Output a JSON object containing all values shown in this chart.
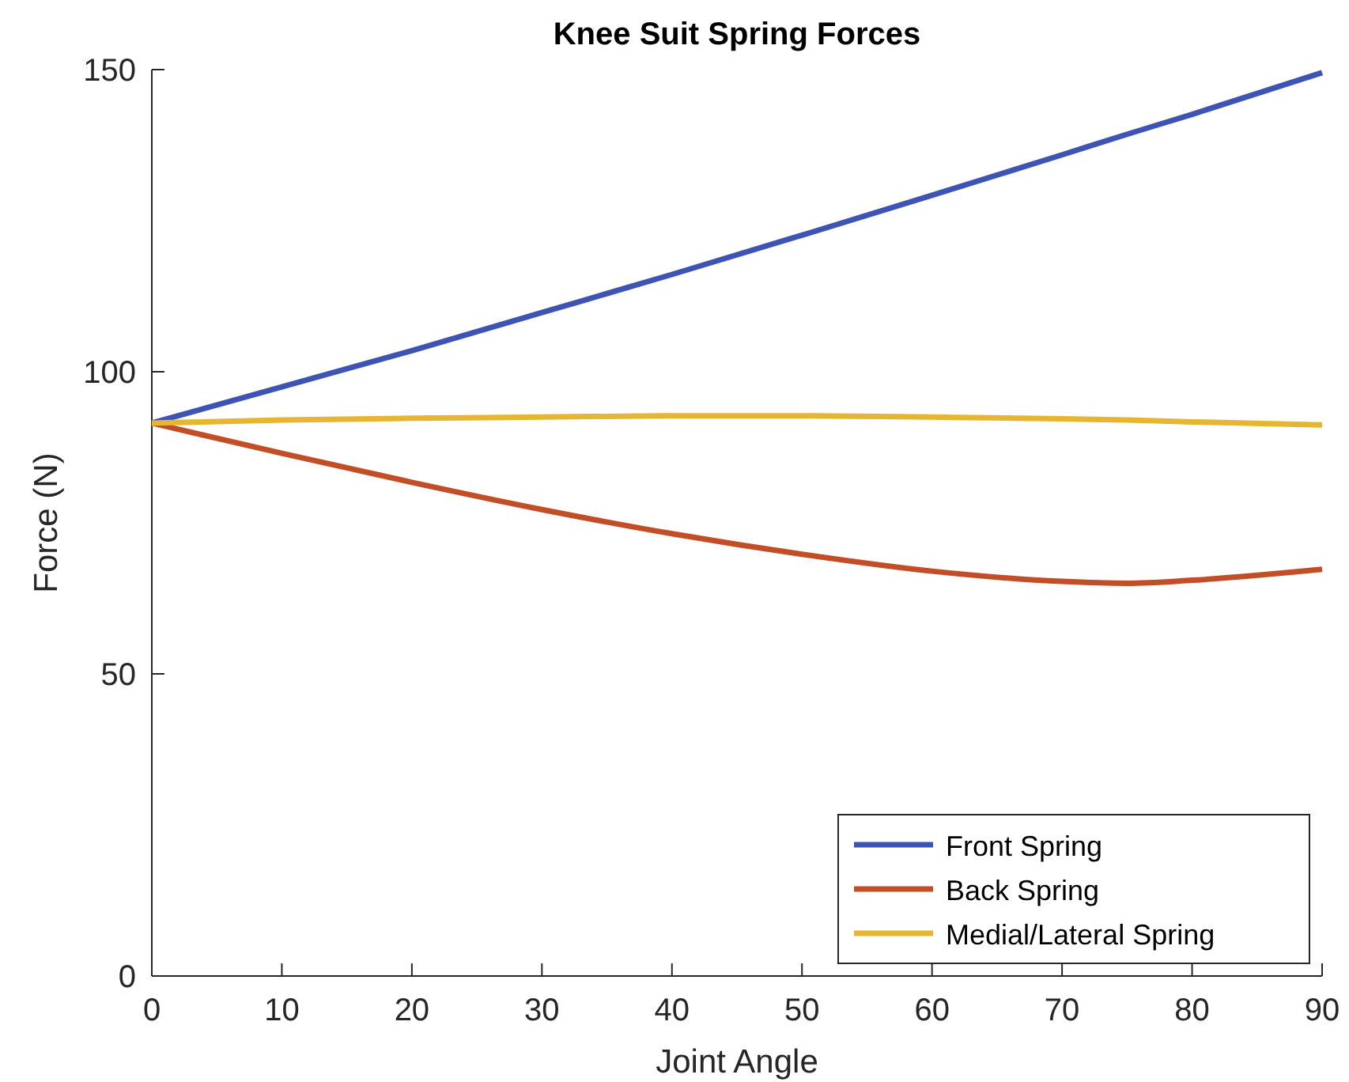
{
  "chart_data": {
    "type": "line",
    "title": "Knee Suit Spring Forces",
    "xlabel": "Joint Angle",
    "ylabel": "Force (N)",
    "xlim": [
      0,
      90
    ],
    "xticks": [
      0,
      10,
      20,
      30,
      40,
      50,
      60,
      70,
      80,
      90
    ],
    "ylim": [
      0,
      150
    ],
    "yticks": [
      0,
      50,
      100,
      150
    ],
    "x": [
      0,
      10,
      20,
      30,
      40,
      50,
      60,
      70,
      75,
      80,
      90
    ],
    "series": [
      {
        "name": "Front Spring",
        "color": "#3d54b4",
        "values": [
          91.5,
          97.5,
          103.5,
          109.8,
          116.1,
          122.6,
          129.2,
          135.9,
          139.3,
          142.6,
          149.5
        ]
      },
      {
        "name": "Back Spring",
        "color": "#c24e28",
        "values": [
          91.5,
          86.5,
          81.7,
          77.2,
          73.2,
          69.8,
          67,
          65.3,
          65,
          65.5,
          67.3
        ]
      },
      {
        "name": "Medial/Lateral Spring",
        "color": "#e6b531",
        "values": [
          91.5,
          92,
          92.3,
          92.5,
          92.7,
          92.7,
          92.5,
          92.2,
          92,
          91.7,
          91.2
        ]
      }
    ],
    "legend": "bottom right",
    "grid": false
  }
}
